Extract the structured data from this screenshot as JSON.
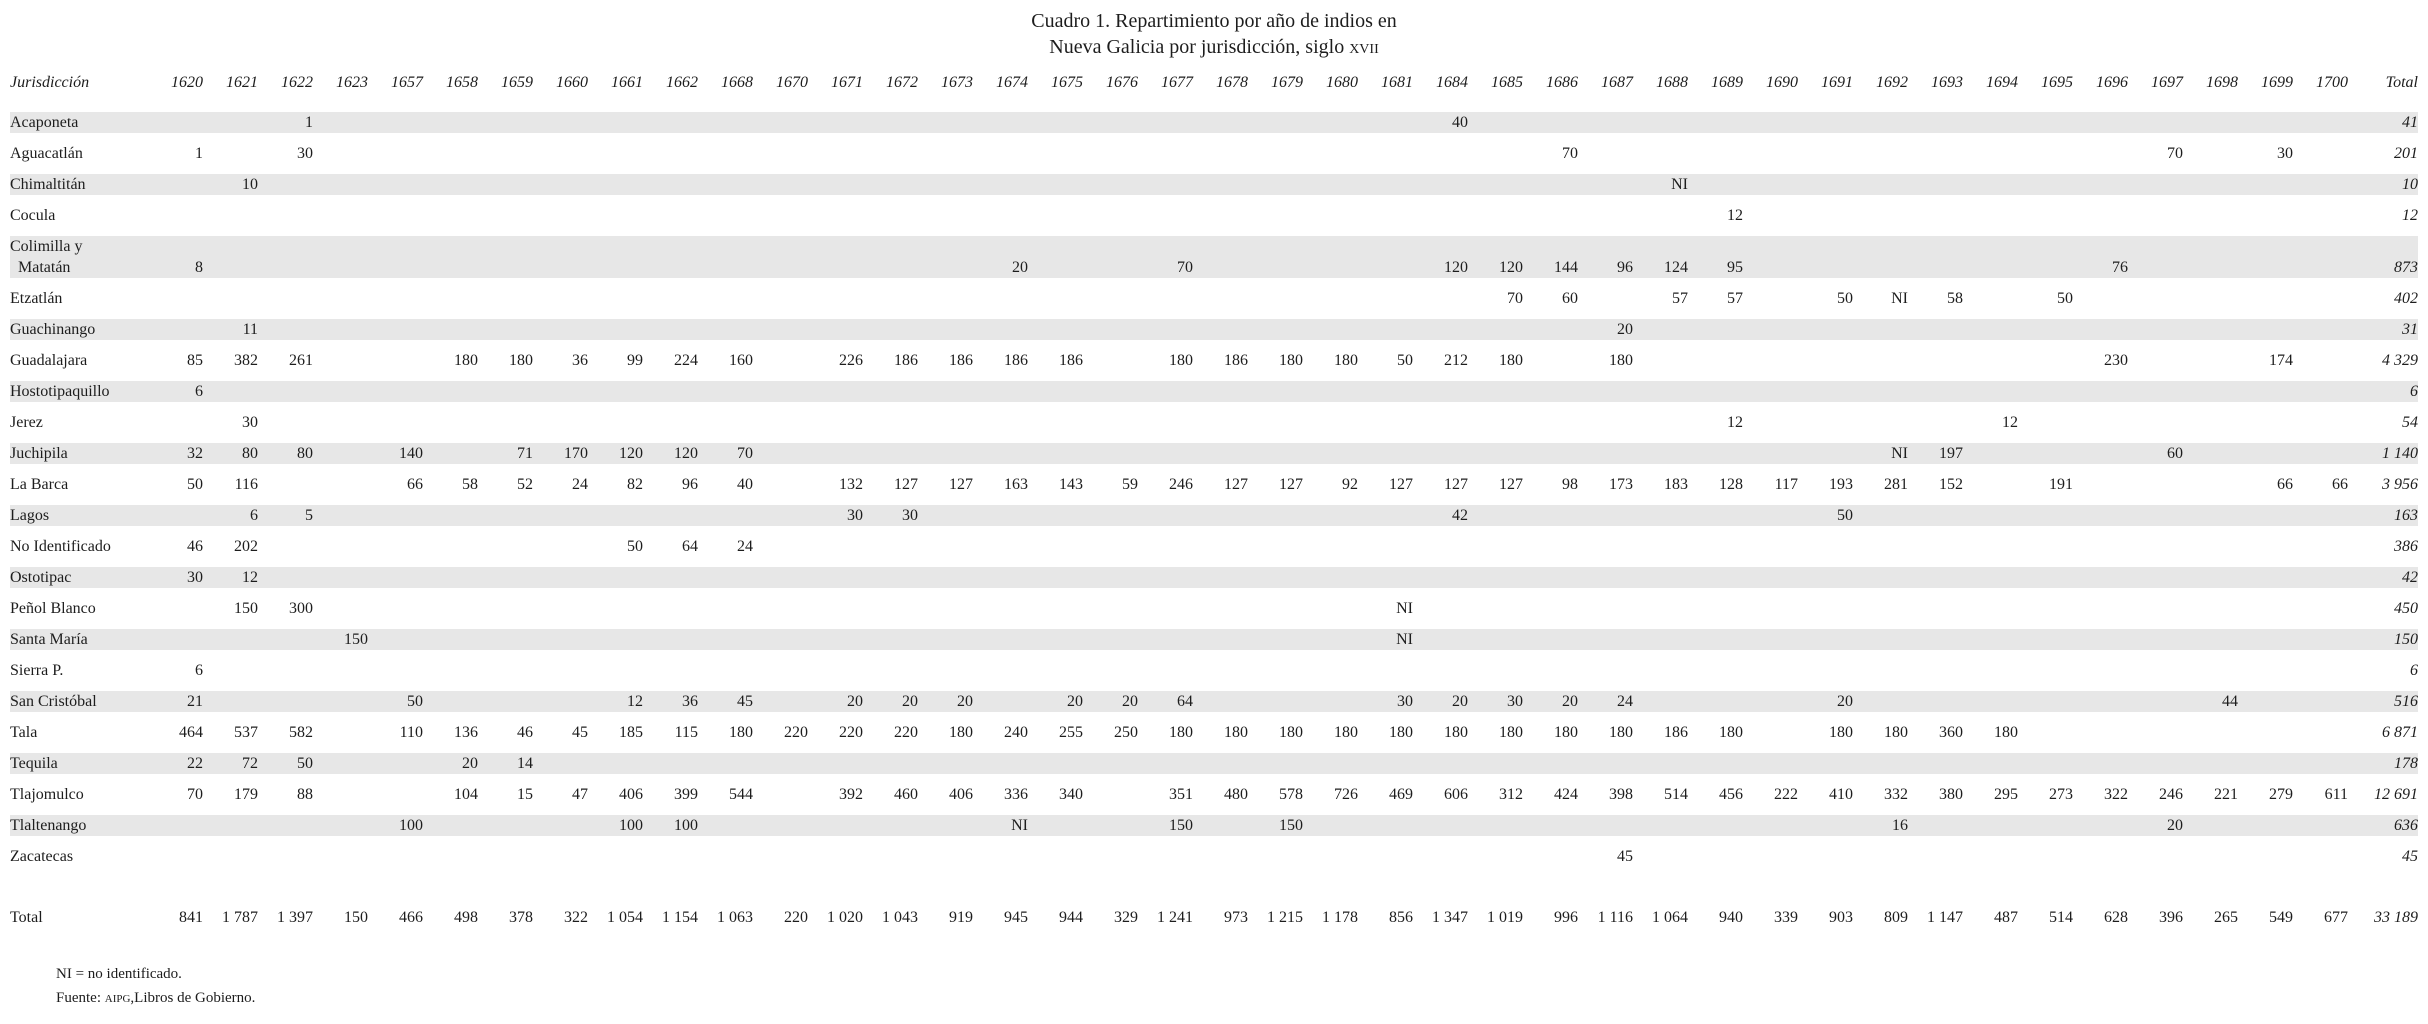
{
  "title": {
    "line1": "Cuadro 1. Repartimiento por año de indios en",
    "line2_prefix": "Nueva Galicia por jurisdicción, siglo ",
    "line2_century": "xvii"
  },
  "table": {
    "first_col_header": "Jurisdicción",
    "total_col_header": "Total",
    "years": [
      "1620",
      "1621",
      "1622",
      "1623",
      "1657",
      "1658",
      "1659",
      "1660",
      "1661",
      "1662",
      "1668",
      "1670",
      "1671",
      "1672",
      "1673",
      "1674",
      "1675",
      "1676",
      "1677",
      "1678",
      "1679",
      "1680",
      "1681",
      "1684",
      "1685",
      "1686",
      "1687",
      "1688",
      "1689",
      "1690",
      "1691",
      "1692",
      "1693",
      "1694",
      "1695",
      "1696",
      "1697",
      "1698",
      "1699",
      "1700"
    ],
    "rows": [
      {
        "label": "Acaponeta",
        "values": {
          "1622": "1",
          "1684": "40"
        },
        "total": "41"
      },
      {
        "label": "Aguacatlán",
        "values": {
          "1620": "1",
          "1622": "30",
          "1686": "70",
          "1697": "70",
          "1699": "30"
        },
        "total": "201"
      },
      {
        "label": "Chimaltitán",
        "values": {
          "1621": "10",
          "1688": "NI"
        },
        "total": "10"
      },
      {
        "label": "Cocula",
        "values": {
          "1689": "12"
        },
        "total": "12"
      },
      {
        "label": "Colimilla y\n  Matatán",
        "wrap": true,
        "values": {
          "1620": "8",
          "1674": "20",
          "1677": "70",
          "1684": "120",
          "1685": "120",
          "1686": "144",
          "1687": "96",
          "1688": "124",
          "1689": "95",
          "1696": "76"
        },
        "total": "873"
      },
      {
        "label": "Etzatlán",
        "values": {
          "1685": "70",
          "1686": "60",
          "1688": "57",
          "1689": "57",
          "1691": "50",
          "1692": "NI",
          "1693": "58",
          "1695": "50"
        },
        "total": "402"
      },
      {
        "label": "Guachinango",
        "values": {
          "1621": "11",
          "1687": "20"
        },
        "total": "31"
      },
      {
        "label": "Guadalajara",
        "values": {
          "1620": "85",
          "1621": "382",
          "1622": "261",
          "1658": "180",
          "1659": "180",
          "1660": "36",
          "1661": "99",
          "1662": "224",
          "1668": "160",
          "1671": "226",
          "1672": "186",
          "1673": "186",
          "1674": "186",
          "1675": "186",
          "1677": "180",
          "1678": "186",
          "1679": "180",
          "1680": "180",
          "1681": "50",
          "1684": "212",
          "1685": "180",
          "1687": "180",
          "1696": "230",
          "1699": "174"
        },
        "total": "4 329"
      },
      {
        "label": "Hostotipaquillo",
        "values": {
          "1620": "6"
        },
        "total": "6"
      },
      {
        "label": "Jerez",
        "values": {
          "1621": "30",
          "1689": "12",
          "1694": "12"
        },
        "total": "54"
      },
      {
        "label": "Juchipila",
        "values": {
          "1620": "32",
          "1621": "80",
          "1622": "80",
          "1657": "140",
          "1659": "71",
          "1660": "170",
          "1661": "120",
          "1662": "120",
          "1668": "70",
          "1692": "NI",
          "1693": "197",
          "1697": "60"
        },
        "total": "1 140"
      },
      {
        "label": "La Barca",
        "values": {
          "1620": "50",
          "1621": "116",
          "1657": "66",
          "1658": "58",
          "1659": "52",
          "1660": "24",
          "1661": "82",
          "1662": "96",
          "1668": "40",
          "1671": "132",
          "1672": "127",
          "1673": "127",
          "1674": "163",
          "1675": "143",
          "1676": "59",
          "1677": "246",
          "1678": "127",
          "1679": "127",
          "1680": "92",
          "1681": "127",
          "1684": "127",
          "1685": "127",
          "1686": "98",
          "1687": "173",
          "1688": "183",
          "1689": "128",
          "1690": "117",
          "1691": "193",
          "1692": "281",
          "1693": "152",
          "1695": "191",
          "1699": "66",
          "1700": "66"
        },
        "total": "3 956"
      },
      {
        "label": "Lagos",
        "values": {
          "1621": "6",
          "1622": "5",
          "1671": "30",
          "1672": "30",
          "1684": "42",
          "1691": "50"
        },
        "total": "163"
      },
      {
        "label": "No Identificado",
        "values": {
          "1620": "46",
          "1621": "202",
          "1661": "50",
          "1662": "64",
          "1668": "24"
        },
        "total": "386"
      },
      {
        "label": "Ostotipac",
        "values": {
          "1620": "30",
          "1621": "12"
        },
        "total": "42"
      },
      {
        "label": "Peñol Blanco",
        "values": {
          "1621": "150",
          "1622": "300",
          "1681": "NI"
        },
        "total": "450"
      },
      {
        "label": "Santa María",
        "values": {
          "1623": "150",
          "1681": "NI"
        },
        "total": "150"
      },
      {
        "label": "Sierra P.",
        "values": {
          "1620": "6"
        },
        "total": "6"
      },
      {
        "label": "San Cristóbal",
        "values": {
          "1620": "21",
          "1657": "50",
          "1661": "12",
          "1662": "36",
          "1668": "45",
          "1671": "20",
          "1672": "20",
          "1673": "20",
          "1675": "20",
          "1676": "20",
          "1677": "64",
          "1681": "30",
          "1684": "20",
          "1685": "30",
          "1686": "20",
          "1687": "24",
          "1691": "20",
          "1698": "44"
        },
        "total": "516"
      },
      {
        "label": "Tala",
        "values": {
          "1620": "464",
          "1621": "537",
          "1622": "582",
          "1657": "110",
          "1658": "136",
          "1659": "46",
          "1660": "45",
          "1661": "185",
          "1662": "115",
          "1668": "180",
          "1670": "220",
          "1671": "220",
          "1672": "220",
          "1673": "180",
          "1674": "240",
          "1675": "255",
          "1676": "250",
          "1677": "180",
          "1678": "180",
          "1679": "180",
          "1680": "180",
          "1681": "180",
          "1684": "180",
          "1685": "180",
          "1686": "180",
          "1687": "180",
          "1688": "186",
          "1689": "180",
          "1691": "180",
          "1692": "180",
          "1693": "360",
          "1694": "180"
        },
        "total": "6 871"
      },
      {
        "label": "Tequila",
        "values": {
          "1620": "22",
          "1621": "72",
          "1622": "50",
          "1658": "20",
          "1659": "14"
        },
        "total": "178"
      },
      {
        "label": "Tlajomulco",
        "values": {
          "1620": "70",
          "1621": "179",
          "1622": "88",
          "1658": "104",
          "1659": "15",
          "1660": "47",
          "1661": "406",
          "1662": "399",
          "1668": "544",
          "1671": "392",
          "1672": "460",
          "1673": "406",
          "1674": "336",
          "1675": "340",
          "1677": "351",
          "1678": "480",
          "1679": "578",
          "1680": "726",
          "1681": "469",
          "1684": "606",
          "1685": "312",
          "1686": "424",
          "1687": "398",
          "1688": "514",
          "1689": "456",
          "1690": "222",
          "1691": "410",
          "1692": "332",
          "1693": "380",
          "1694": "295",
          "1695": "273",
          "1696": "322",
          "1697": "246",
          "1698": "221",
          "1699": "279",
          "1700": "611"
        },
        "total": "12 691"
      },
      {
        "label": "Tlaltenango",
        "values": {
          "1657": "100",
          "1661": "100",
          "1662": "100",
          "1674": "NI",
          "1677": "150",
          "1679": "150",
          "1692": "16",
          "1697": "20"
        },
        "total": "636"
      },
      {
        "label": "Zacatecas",
        "values": {
          "1687": "45"
        },
        "total": "45"
      }
    ],
    "total_row": {
      "label": "Total",
      "values": {
        "1620": "841",
        "1621": "1 787",
        "1622": "1 397",
        "1623": "150",
        "1657": "466",
        "1658": "498",
        "1659": "378",
        "1660": "322",
        "1661": "1 054",
        "1662": "1 154",
        "1668": "1 063",
        "1670": "220",
        "1671": "1 020",
        "1672": "1 043",
        "1673": "919",
        "1674": "945",
        "1675": "944",
        "1676": "329",
        "1677": "1 241",
        "1678": "973",
        "1679": "1 215",
        "1680": "1 178",
        "1681": "856",
        "1684": "1 347",
        "1685": "1 019",
        "1686": "996",
        "1687": "1 116",
        "1688": "1 064",
        "1689": "940",
        "1690": "339",
        "1691": "903",
        "1692": "809",
        "1693": "1 147",
        "1694": "487",
        "1695": "514",
        "1696": "628",
        "1697": "396",
        "1698": "265",
        "1699": "549",
        "1700": "677"
      },
      "total": "33 189"
    }
  },
  "footnotes": {
    "note1": "NI = no identificado.",
    "note2_prefix": "Fuente: ",
    "note2_smallcaps": "aipg",
    "note2_suffix": ",Libros de Gobierno."
  }
}
